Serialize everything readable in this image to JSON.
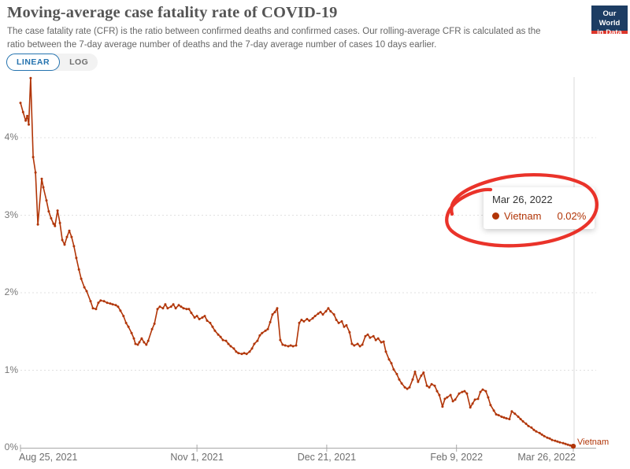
{
  "header": {
    "title": "Moving-average case fatality rate of COVID-19",
    "subtitle": "The case fatality rate (CFR) is the ratio between confirmed deaths and confirmed cases. Our rolling-average CFR is calculated as the ratio between the 7-day average number of deaths and the 7-day average number of cases 10 days earlier."
  },
  "logo": {
    "line1": "Our World",
    "line2": "in Data"
  },
  "controls": {
    "linear_label": "LINEAR",
    "log_label": "LOG",
    "selected": "LINEAR"
  },
  "tooltip": {
    "date": "Mar 26, 2022",
    "entity": "Vietnam",
    "value": "0.02%"
  },
  "colors": {
    "line": "#b13507",
    "annotation": "#e8231a",
    "grid": "#e0e0e0",
    "axis": "#a8a8a8",
    "hover_line": "#d8d8d8",
    "tick_text": "#777777",
    "accent_blue": "#2573af",
    "logo_navy": "#1d3d63",
    "logo_red": "#dd362b",
    "tooltip_date": "#333333"
  },
  "chart_data": {
    "type": "line",
    "title": "Moving-average case fatality rate of COVID-19",
    "xlabel": "",
    "ylabel": "",
    "y_unit": "%",
    "ylim": [
      0,
      4.8
    ],
    "grid": "horizontal-dashed",
    "x_axis": "dates from Aug 25, 2021 to Mar 26, 2022 (day offsets)",
    "x_ticks": [
      {
        "label": "Aug 25, 2021",
        "day": 0,
        "align": "left"
      },
      {
        "label": "Nov 1, 2021",
        "day": 68,
        "align": "center"
      },
      {
        "label": "Dec 21, 2021",
        "day": 118,
        "align": "center"
      },
      {
        "label": "Feb 9, 2022",
        "day": 168,
        "align": "center"
      },
      {
        "label": "Mar 26, 2022",
        "day": 213,
        "align": "right"
      }
    ],
    "y_ticks": [
      {
        "label": "0%",
        "value": 0
      },
      {
        "label": "1%",
        "value": 1
      },
      {
        "label": "2%",
        "value": 2
      },
      {
        "label": "3%",
        "value": 3
      },
      {
        "label": "4%",
        "value": 4
      }
    ],
    "highlighted_point": {
      "date": "Mar 26, 2022",
      "entity": "Vietnam",
      "value_pct": 0.02
    },
    "series": [
      {
        "name": "Vietnam",
        "end_label": "Vietnam",
        "points": [
          [
            0,
            4.45
          ],
          [
            1,
            4.33
          ],
          [
            2,
            4.22
          ],
          [
            2.6,
            4.28
          ],
          [
            3.2,
            4.17
          ],
          [
            3.9,
            4.77
          ],
          [
            4.9,
            3.75
          ],
          [
            5.8,
            3.55
          ],
          [
            6.7,
            2.88
          ],
          [
            8.2,
            3.47
          ],
          [
            8.8,
            3.36
          ],
          [
            10,
            3.19
          ],
          [
            10.9,
            3.05
          ],
          [
            11.8,
            2.96
          ],
          [
            12.7,
            2.89
          ],
          [
            13.3,
            2.86
          ],
          [
            14.3,
            3.06
          ],
          [
            15.2,
            2.9
          ],
          [
            16.1,
            2.68
          ],
          [
            17,
            2.62
          ],
          [
            17.9,
            2.72
          ],
          [
            18.8,
            2.8
          ],
          [
            19.7,
            2.72
          ],
          [
            20.6,
            2.6
          ],
          [
            21.5,
            2.45
          ],
          [
            22.5,
            2.3
          ],
          [
            23.4,
            2.18
          ],
          [
            24.6,
            2.07
          ],
          [
            25.5,
            2.02
          ],
          [
            27,
            1.89
          ],
          [
            27.9,
            1.8
          ],
          [
            29.1,
            1.79
          ],
          [
            30,
            1.87
          ],
          [
            30.9,
            1.9
          ],
          [
            32.2,
            1.89
          ],
          [
            33.4,
            1.87
          ],
          [
            34.6,
            1.86
          ],
          [
            35.5,
            1.85
          ],
          [
            36.7,
            1.84
          ],
          [
            37.6,
            1.82
          ],
          [
            38.5,
            1.77
          ],
          [
            39.7,
            1.7
          ],
          [
            40.7,
            1.61
          ],
          [
            41.6,
            1.56
          ],
          [
            42.8,
            1.48
          ],
          [
            43.7,
            1.41
          ],
          [
            44.3,
            1.34
          ],
          [
            45.2,
            1.33
          ],
          [
            45.8,
            1.36
          ],
          [
            46.7,
            1.41
          ],
          [
            47.6,
            1.36
          ],
          [
            48.5,
            1.33
          ],
          [
            49.2,
            1.38
          ],
          [
            50.7,
            1.53
          ],
          [
            51.6,
            1.6
          ],
          [
            52.8,
            1.79
          ],
          [
            53.7,
            1.82
          ],
          [
            54.9,
            1.8
          ],
          [
            55.8,
            1.85
          ],
          [
            56.7,
            1.8
          ],
          [
            58,
            1.82
          ],
          [
            58.9,
            1.85
          ],
          [
            59.8,
            1.8
          ],
          [
            61,
            1.84
          ],
          [
            61.9,
            1.82
          ],
          [
            62.8,
            1.8
          ],
          [
            64,
            1.79
          ],
          [
            64.9,
            1.79
          ],
          [
            65.8,
            1.74
          ],
          [
            67.1,
            1.68
          ],
          [
            68,
            1.7
          ],
          [
            68.9,
            1.66
          ],
          [
            70.1,
            1.68
          ],
          [
            71,
            1.7
          ],
          [
            71.9,
            1.64
          ],
          [
            73.1,
            1.61
          ],
          [
            74,
            1.56
          ],
          [
            74.9,
            1.51
          ],
          [
            76.2,
            1.46
          ],
          [
            77.1,
            1.43
          ],
          [
            78,
            1.39
          ],
          [
            79.2,
            1.38
          ],
          [
            80.1,
            1.34
          ],
          [
            81,
            1.31
          ],
          [
            82.2,
            1.28
          ],
          [
            83.1,
            1.24
          ],
          [
            84,
            1.22
          ],
          [
            85.3,
            1.21
          ],
          [
            86.2,
            1.22
          ],
          [
            87.1,
            1.21
          ],
          [
            88.3,
            1.24
          ],
          [
            89.2,
            1.28
          ],
          [
            90.1,
            1.34
          ],
          [
            91.3,
            1.38
          ],
          [
            92.2,
            1.45
          ],
          [
            93.1,
            1.48
          ],
          [
            94.4,
            1.51
          ],
          [
            95.3,
            1.53
          ],
          [
            96.2,
            1.62
          ],
          [
            97.1,
            1.72
          ],
          [
            98,
            1.75
          ],
          [
            98.9,
            1.8
          ],
          [
            100.1,
            1.39
          ],
          [
            101,
            1.33
          ],
          [
            102,
            1.32
          ],
          [
            103.2,
            1.31
          ],
          [
            104.1,
            1.32
          ],
          [
            105,
            1.31
          ],
          [
            106.2,
            1.32
          ],
          [
            107.4,
            1.61
          ],
          [
            108.3,
            1.65
          ],
          [
            109.2,
            1.63
          ],
          [
            110.4,
            1.66
          ],
          [
            111.3,
            1.64
          ],
          [
            112.6,
            1.67
          ],
          [
            113.5,
            1.7
          ],
          [
            114.7,
            1.73
          ],
          [
            115.6,
            1.75
          ],
          [
            116.5,
            1.72
          ],
          [
            117.7,
            1.76
          ],
          [
            118.6,
            1.8
          ],
          [
            119.5,
            1.76
          ],
          [
            120.8,
            1.72
          ],
          [
            121.7,
            1.65
          ],
          [
            122.6,
            1.61
          ],
          [
            123.8,
            1.63
          ],
          [
            124.7,
            1.56
          ],
          [
            125.6,
            1.58
          ],
          [
            126.8,
            1.49
          ],
          [
            127.7,
            1.34
          ],
          [
            128.6,
            1.32
          ],
          [
            129.9,
            1.34
          ],
          [
            130.8,
            1.31
          ],
          [
            131.7,
            1.33
          ],
          [
            132.9,
            1.44
          ],
          [
            133.8,
            1.46
          ],
          [
            134.7,
            1.42
          ],
          [
            136,
            1.44
          ],
          [
            136.9,
            1.39
          ],
          [
            137.8,
            1.41
          ],
          [
            139,
            1.36
          ],
          [
            139.9,
            1.37
          ],
          [
            140.8,
            1.24
          ],
          [
            142,
            1.14
          ],
          [
            142.9,
            1.09
          ],
          [
            143.8,
            1.01
          ],
          [
            145,
            0.95
          ],
          [
            145.9,
            0.88
          ],
          [
            146.9,
            0.83
          ],
          [
            148.1,
            0.78
          ],
          [
            149,
            0.76
          ],
          [
            149.9,
            0.78
          ],
          [
            151.1,
            0.88
          ],
          [
            152,
            0.98
          ],
          [
            153.2,
            0.85
          ],
          [
            154.4,
            0.93
          ],
          [
            155.3,
            0.97
          ],
          [
            156.6,
            0.8
          ],
          [
            157.5,
            0.78
          ],
          [
            158.4,
            0.82
          ],
          [
            159.6,
            0.8
          ],
          [
            160.5,
            0.73
          ],
          [
            161.4,
            0.68
          ],
          [
            162.6,
            0.53
          ],
          [
            163.5,
            0.63
          ],
          [
            164.4,
            0.65
          ],
          [
            165.7,
            0.68
          ],
          [
            166.6,
            0.6
          ],
          [
            167.5,
            0.62
          ],
          [
            169,
            0.7
          ],
          [
            170.2,
            0.72
          ],
          [
            171.1,
            0.73
          ],
          [
            172,
            0.7
          ],
          [
            173.3,
            0.52
          ],
          [
            174.2,
            0.57
          ],
          [
            175.1,
            0.62
          ],
          [
            176.3,
            0.63
          ],
          [
            177.2,
            0.72
          ],
          [
            178.1,
            0.75
          ],
          [
            179.3,
            0.73
          ],
          [
            180.2,
            0.65
          ],
          [
            181.1,
            0.55
          ],
          [
            182.4,
            0.48
          ],
          [
            183.3,
            0.43
          ],
          [
            184.2,
            0.42
          ],
          [
            185.4,
            0.4
          ],
          [
            186.3,
            0.39
          ],
          [
            187.2,
            0.38
          ],
          [
            188.4,
            0.37
          ],
          [
            189.3,
            0.47
          ],
          [
            190.5,
            0.44
          ],
          [
            191.8,
            0.4
          ],
          [
            192.7,
            0.37
          ],
          [
            193.6,
            0.34
          ],
          [
            194.8,
            0.31
          ],
          [
            195.7,
            0.28
          ],
          [
            196.9,
            0.26
          ],
          [
            197.8,
            0.23
          ],
          [
            198.7,
            0.21
          ],
          [
            200,
            0.19
          ],
          [
            200.9,
            0.17
          ],
          [
            201.8,
            0.15
          ],
          [
            203,
            0.13
          ],
          [
            203.9,
            0.12
          ],
          [
            204.8,
            0.1
          ],
          [
            206,
            0.09
          ],
          [
            206.9,
            0.08
          ],
          [
            207.8,
            0.07
          ],
          [
            209.1,
            0.06
          ],
          [
            210,
            0.05
          ],
          [
            210.9,
            0.04
          ],
          [
            211.8,
            0.03
          ],
          [
            213,
            0.02
          ]
        ]
      }
    ]
  }
}
